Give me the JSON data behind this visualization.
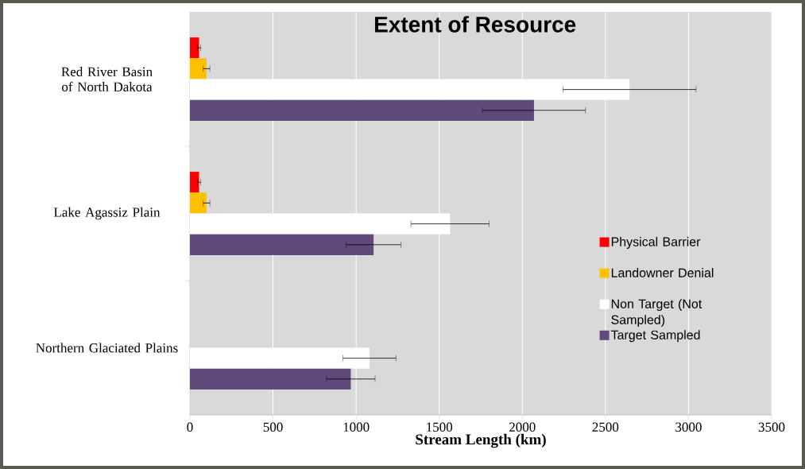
{
  "chart_data": {
    "type": "bar",
    "orientation": "horizontal",
    "title": "Extent of Resource",
    "xlabel": "Stream Length (km)",
    "categories": [
      "Red River Basin of North Dakota",
      "Lake Agassiz Plain",
      "Northern Glaciated Plains"
    ],
    "series": [
      {
        "name": "Physical Barrier",
        "color": "#ff0000",
        "values": [
          55,
          55,
          null
        ],
        "errors": [
          10,
          10,
          null
        ]
      },
      {
        "name": "Landowner Denial",
        "color": "#ffc000",
        "values": [
          100,
          100,
          null
        ],
        "errors": [
          20,
          20,
          null
        ]
      },
      {
        "name": "Non Target (Not Sampled)",
        "color": "#ffffff",
        "values": [
          2645,
          1565,
          1080
        ],
        "errors": [
          400,
          235,
          160
        ]
      },
      {
        "name": "Target Sampled",
        "color": "#604a7b",
        "values": [
          2070,
          1105,
          968
        ],
        "errors": [
          310,
          165,
          146
        ]
      }
    ],
    "xlim": [
      0,
      3500
    ],
    "xticks": [
      0,
      500,
      1000,
      1500,
      2000,
      2500,
      3000,
      3500
    ],
    "grid": "x",
    "legend": "right"
  }
}
